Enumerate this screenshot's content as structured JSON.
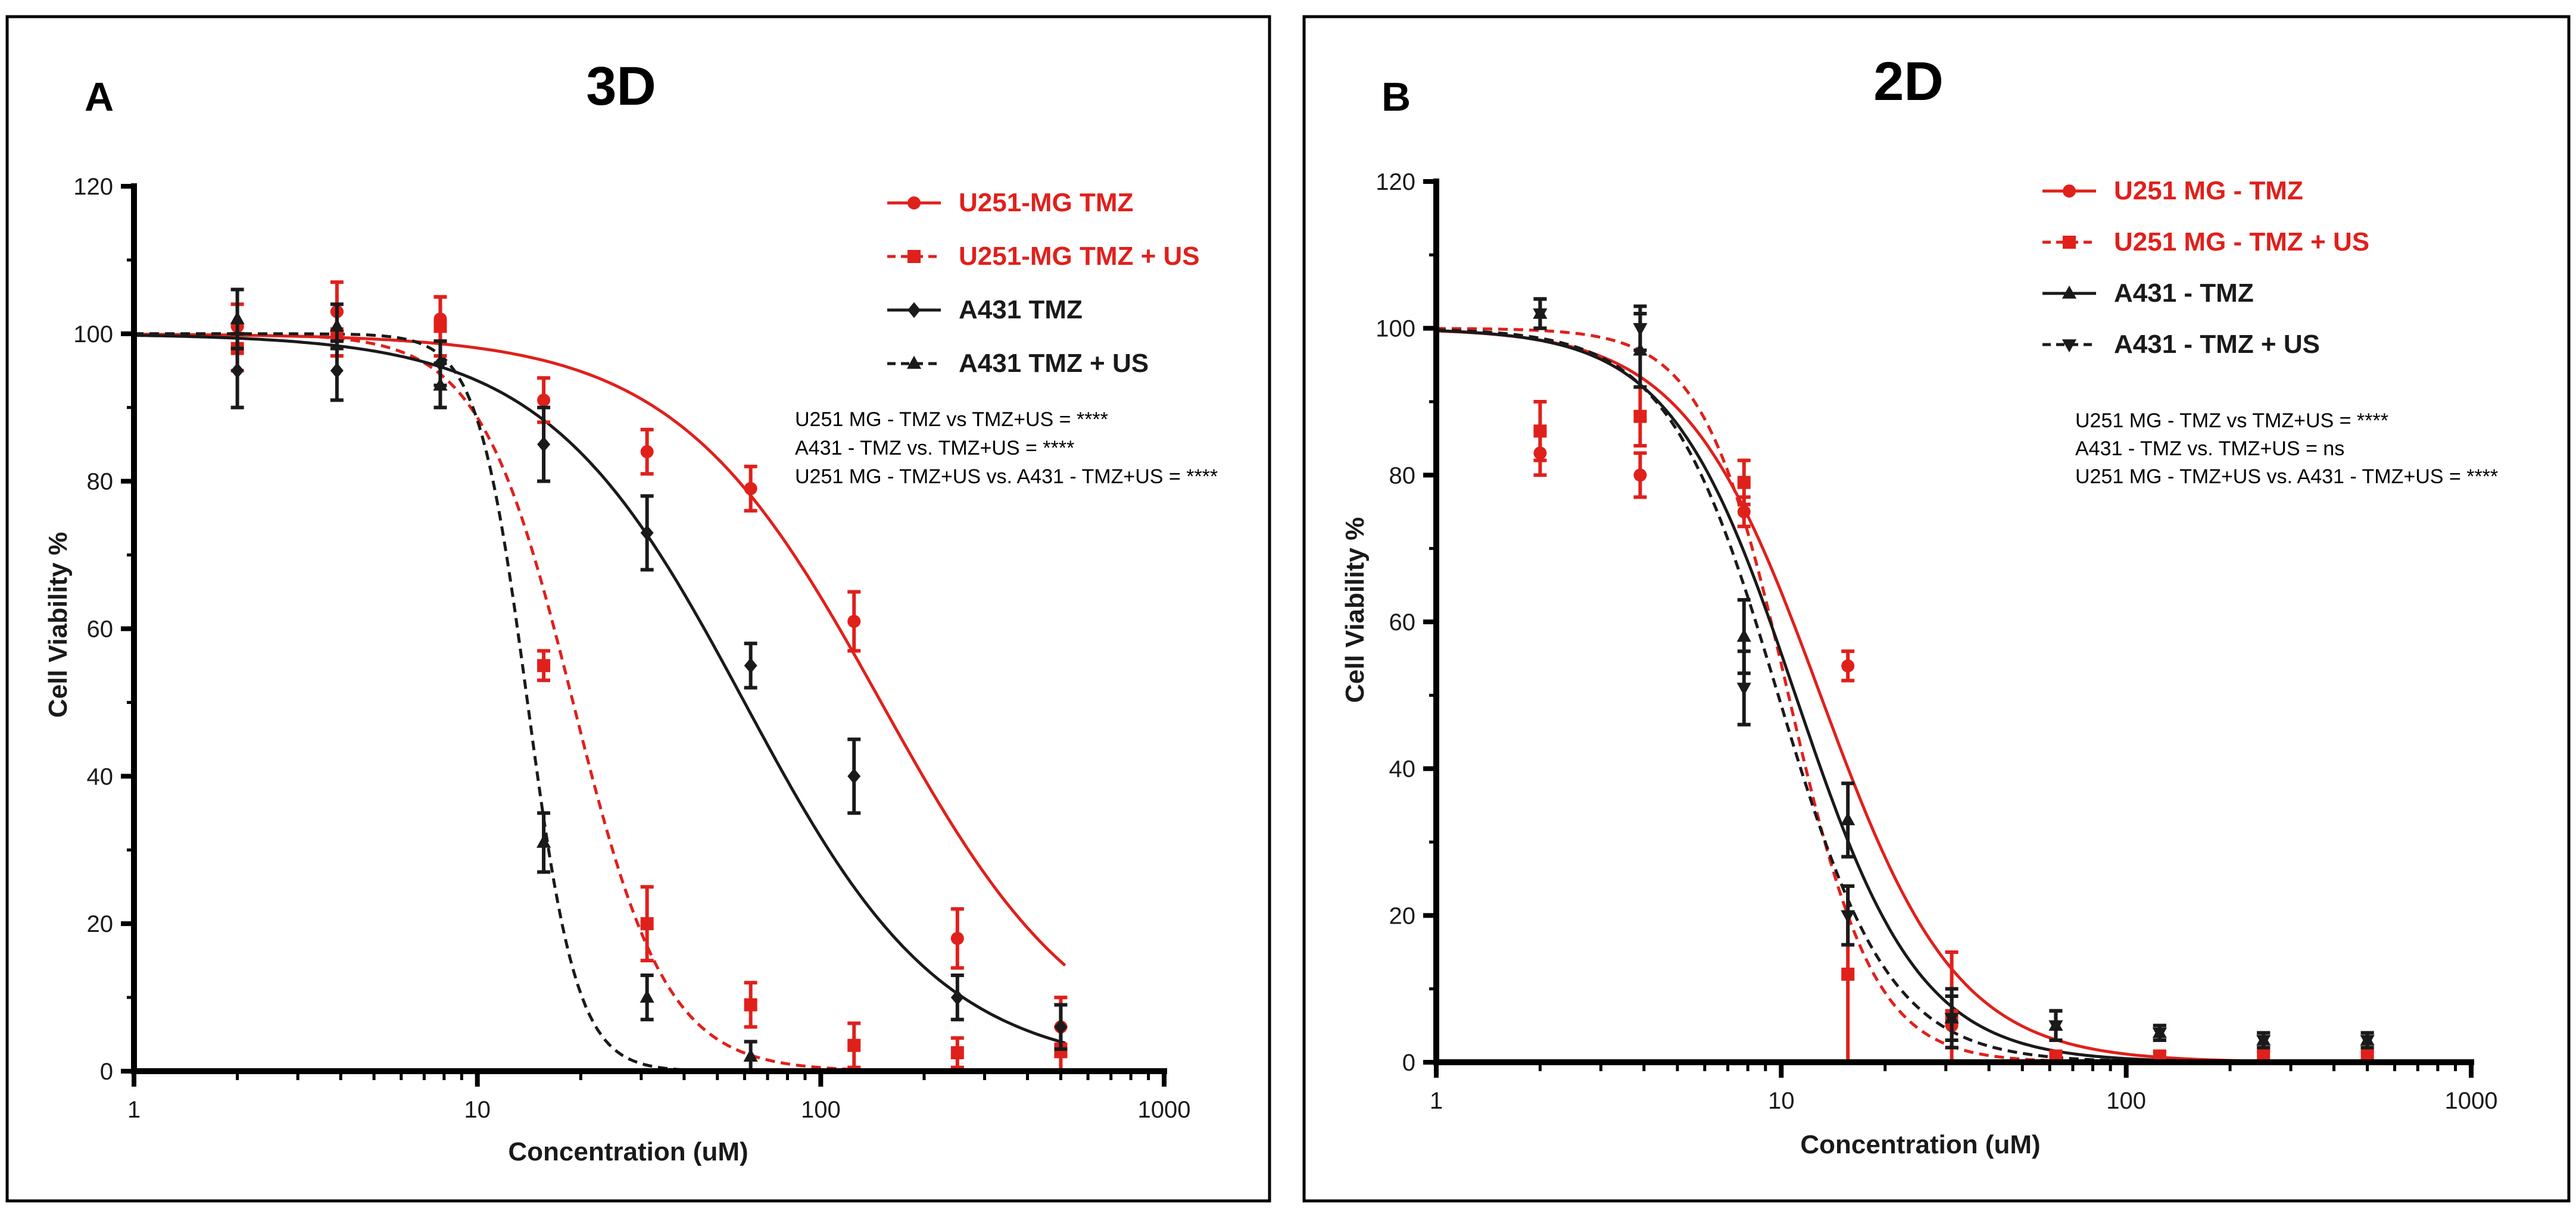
{
  "chart_data": [
    {
      "panel": "A",
      "type": "line",
      "title": "3D",
      "xlabel": "Concentration (uM)",
      "ylabel": "Cell Viability %",
      "xscale": "log",
      "xlim": [
        1,
        1000
      ],
      "ylim": [
        0,
        120
      ],
      "xticks": [
        "1",
        "10",
        "100",
        "1000"
      ],
      "yticks": [
        "0",
        "20",
        "40",
        "60",
        "80",
        "100",
        "120"
      ],
      "legend_position": "top-right",
      "series": [
        {
          "name": "U251-MG TMZ",
          "color": "#e0201b",
          "dash": "solid",
          "marker": "circle",
          "ic50": 150,
          "hill": 1.45,
          "x": [
            2,
            3.9,
            7.8,
            15.6,
            31.2,
            62.5,
            125,
            250,
            500
          ],
          "y": [
            101,
            103,
            102,
            91,
            84,
            79,
            61,
            18,
            6
          ],
          "err": [
            3,
            4,
            3,
            3,
            3,
            3,
            4,
            4,
            4
          ]
        },
        {
          "name": "U251-MG TMZ + US",
          "color": "#e0201b",
          "dash": "dashed",
          "marker": "square",
          "ic50": 19,
          "hill": 3.2,
          "x": [
            2,
            3.9,
            7.8,
            15.6,
            31.2,
            62.5,
            125,
            250,
            500
          ],
          "y": [
            98,
            100,
            101,
            55,
            20,
            9,
            3.5,
            2.5,
            3
          ],
          "err": [
            3,
            3,
            4,
            2,
            5,
            3,
            3,
            2,
            3
          ]
        },
        {
          "name": "A431 TMZ",
          "color": "#1a1a1a",
          "dash": "solid",
          "marker": "diamond",
          "ic50": 60,
          "hill": 1.5,
          "x": [
            2,
            3.9,
            7.8,
            15.6,
            31.2,
            62.5,
            125,
            250,
            500
          ],
          "y": [
            95,
            95,
            96,
            85,
            73,
            55,
            40,
            10,
            6
          ],
          "err": [
            5,
            4,
            3,
            5,
            5,
            3,
            5,
            3,
            3
          ]
        },
        {
          "name": "A431 TMZ + US",
          "color": "#1a1a1a",
          "dash": "dashed",
          "marker": "triangle-up",
          "ic50": 14,
          "hill": 6.0,
          "x": [
            2,
            3.9,
            7.8,
            15.6,
            31.2,
            62.5
          ],
          "y": [
            102,
            101,
            93,
            31,
            10,
            2
          ],
          "err": [
            4,
            3,
            3,
            4,
            3,
            2
          ]
        }
      ],
      "stats": [
        "U251 MG - TMZ vs TMZ+US = ****",
        "A431 - TMZ vs. TMZ+US = ****",
        "U251 MG - TMZ+US vs. A431 - TMZ+US = ****"
      ]
    },
    {
      "panel": "B",
      "type": "line",
      "title": "2D",
      "xlabel": "Concentration (uM)",
      "ylabel": "Cell Viability %",
      "xscale": "log",
      "xlim": [
        1,
        1000
      ],
      "ylim": [
        0,
        120
      ],
      "xticks": [
        "1",
        "10",
        "100",
        "1000"
      ],
      "yticks": [
        "0",
        "20",
        "40",
        "60",
        "80",
        "100",
        "120"
      ],
      "legend_position": "top-right",
      "series": [
        {
          "name": "U251 MG - TMZ",
          "color": "#e0201b",
          "dash": "solid",
          "marker": "circle",
          "ic50": 13,
          "hill": 2.2,
          "x": [
            2,
            3.9,
            7.8,
            15.6,
            31.2,
            62.5,
            125,
            250,
            500
          ],
          "y": [
            83,
            80,
            75,
            54,
            5,
            0.5,
            0.5,
            0.5,
            0.5
          ],
          "err": [
            3,
            3,
            2,
            2,
            2,
            1,
            1,
            1,
            1
          ]
        },
        {
          "name": "U251 MG - TMZ + US",
          "color": "#e0201b",
          "dash": "dashed",
          "marker": "square",
          "ic50": 10.5,
          "hill": 3.5,
          "x": [
            2,
            3.9,
            7.8,
            15.6,
            31.2,
            62.5,
            125,
            250,
            500
          ],
          "y": [
            86,
            88,
            79,
            12,
            6,
            0.5,
            0.5,
            0.5,
            0.5
          ],
          "err": [
            4,
            4,
            3,
            12,
            9,
            1,
            1,
            1,
            1
          ]
        },
        {
          "name": "A431 - TMZ",
          "color": "#1a1a1a",
          "dash": "solid",
          "marker": "triangle-up",
          "ic50": 11,
          "hill": 2.4,
          "x": [
            2,
            3.9,
            7.8,
            15.6,
            31.2,
            62.5,
            125,
            250,
            500
          ],
          "y": [
            102,
            97,
            58,
            33,
            6,
            5,
            4,
            3,
            3
          ],
          "err": [
            2,
            5,
            5,
            5,
            4,
            2,
            1,
            1,
            1
          ]
        },
        {
          "name": "A431 - TMZ + US",
          "color": "#1a1a1a",
          "dash": "dashed",
          "marker": "triangle-down",
          "ic50": 9.8,
          "hill": 2.7,
          "x": [
            2,
            3.9,
            7.8,
            15.6,
            31.2,
            62.5,
            125,
            250,
            500
          ],
          "y": [
            102,
            100,
            51,
            20,
            6,
            5,
            4,
            3,
            3
          ],
          "err": [
            2,
            3,
            5,
            4,
            3,
            2,
            1,
            1,
            1
          ]
        }
      ],
      "stats": [
        "U251 MG - TMZ vs TMZ+US = ****",
        "A431 - TMZ vs. TMZ+US = ns",
        "U251 MG - TMZ+US vs. A431 - TMZ+US = ****"
      ]
    }
  ]
}
